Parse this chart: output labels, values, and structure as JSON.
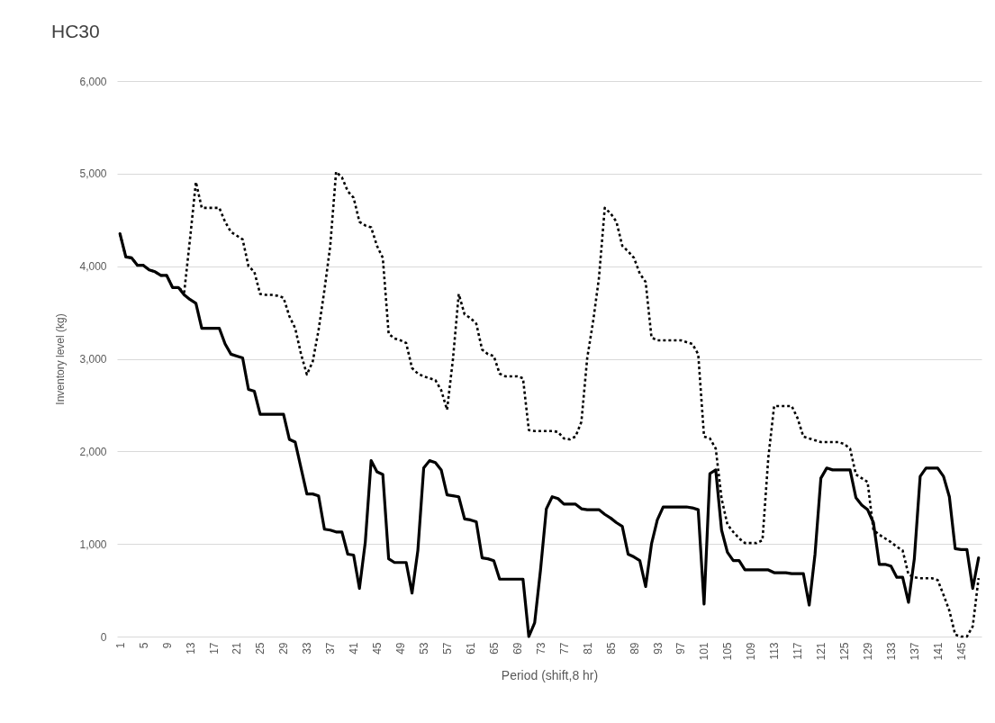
{
  "chart_data": {
    "type": "line",
    "title": "HC30",
    "xlabel": "Period (shift,8 hr)",
    "ylabel": "Inventory level (kg)",
    "x": [
      1,
      2,
      3,
      4,
      5,
      6,
      7,
      8,
      9,
      10,
      11,
      12,
      13,
      14,
      15,
      16,
      17,
      18,
      19,
      20,
      21,
      22,
      23,
      24,
      25,
      26,
      27,
      28,
      29,
      30,
      31,
      32,
      33,
      34,
      35,
      36,
      37,
      38,
      39,
      40,
      41,
      42,
      43,
      44,
      45,
      46,
      47,
      48,
      49,
      50,
      51,
      52,
      53,
      54,
      55,
      56,
      57,
      58,
      59,
      60,
      61,
      62,
      63,
      64,
      65,
      66,
      67,
      68,
      69,
      70,
      71,
      72,
      73,
      74,
      75,
      76,
      77,
      78,
      79,
      80,
      81,
      82,
      83,
      84,
      85,
      86,
      87,
      88,
      89,
      90,
      91,
      92,
      93,
      94,
      95,
      96,
      97,
      98,
      99,
      100,
      101,
      102,
      103,
      104,
      105,
      106,
      107,
      108,
      109,
      110,
      111,
      112,
      113,
      114,
      115,
      116,
      117,
      118,
      119,
      120,
      121,
      122,
      123,
      124,
      125,
      126,
      127,
      128,
      129,
      130,
      131,
      132,
      133,
      134,
      135,
      136,
      137,
      138,
      139,
      140,
      141,
      142,
      143,
      144,
      145,
      146,
      147,
      148
    ],
    "xlim": [
      0.5,
      148.5
    ],
    "xticks": [
      1,
      5,
      9,
      13,
      17,
      21,
      25,
      29,
      33,
      37,
      41,
      45,
      49,
      53,
      57,
      61,
      65,
      69,
      73,
      77,
      81,
      85,
      89,
      93,
      97,
      101,
      105,
      109,
      113,
      117,
      121,
      125,
      129,
      133,
      137,
      141,
      145
    ],
    "ylim": [
      0,
      6000
    ],
    "yticks": [
      0,
      {
        "value": 1000,
        "label": "1,000"
      },
      {
        "value": 2000,
        "label": "2,000"
      },
      {
        "value": 3000,
        "label": "3,000"
      },
      {
        "value": 4000,
        "label": "4,000"
      },
      {
        "value": 5000,
        "label": "5,000"
      },
      {
        "value": 6000,
        "label": "6,000"
      }
    ],
    "grid": "y",
    "series": [
      {
        "color": "#000000",
        "line_style": "dotted",
        "values": [
          4350,
          4100,
          4090,
          4010,
          4010,
          3960,
          3940,
          3900,
          3900,
          3770,
          3770,
          3720,
          4300,
          4910,
          4630,
          4630,
          4630,
          4630,
          4480,
          4370,
          4330,
          4290,
          4000,
          3940,
          3700,
          3690,
          3690,
          3680,
          3660,
          3460,
          3330,
          3050,
          2830,
          2970,
          3310,
          3740,
          4220,
          5020,
          4960,
          4810,
          4740,
          4480,
          4440,
          4420,
          4220,
          4090,
          3270,
          3220,
          3200,
          3170,
          2900,
          2840,
          2810,
          2790,
          2770,
          2660,
          2450,
          2990,
          3700,
          3480,
          3440,
          3380,
          3100,
          3050,
          3030,
          2840,
          2810,
          2810,
          2810,
          2790,
          2230,
          2220,
          2220,
          2220,
          2220,
          2210,
          2140,
          2130,
          2160,
          2320,
          3010,
          3400,
          3870,
          4630,
          4570,
          4480,
          4220,
          4160,
          4090,
          3920,
          3830,
          3230,
          3200,
          3200,
          3200,
          3200,
          3200,
          3180,
          3160,
          3050,
          2160,
          2140,
          2030,
          1490,
          1210,
          1130,
          1060,
          1010,
          1010,
          1010,
          1040,
          1930,
          2490,
          2490,
          2490,
          2490,
          2360,
          2160,
          2140,
          2120,
          2100,
          2100,
          2100,
          2100,
          2080,
          2030,
          1750,
          1710,
          1670,
          1150,
          1100,
          1060,
          1020,
          970,
          930,
          670,
          640,
          630,
          630,
          630,
          610,
          450,
          280,
          20,
          0,
          0,
          110,
          630
        ]
      },
      {
        "color": "#000000",
        "line_style": "solid",
        "values": [
          4350,
          4100,
          4090,
          4010,
          4010,
          3960,
          3940,
          3900,
          3900,
          3770,
          3770,
          3690,
          3640,
          3600,
          3330,
          3330,
          3330,
          3330,
          3160,
          3050,
          3030,
          3010,
          2670,
          2650,
          2400,
          2400,
          2400,
          2400,
          2400,
          2130,
          2100,
          1820,
          1540,
          1540,
          1520,
          1160,
          1150,
          1130,
          1130,
          890,
          880,
          520,
          1020,
          1900,
          1780,
          1750,
          840,
          800,
          800,
          800,
          470,
          930,
          1820,
          1900,
          1880,
          1800,
          1530,
          1520,
          1510,
          1270,
          1260,
          1240,
          850,
          840,
          820,
          620,
          620,
          620,
          620,
          620,
          0,
          150,
          720,
          1380,
          1510,
          1490,
          1430,
          1430,
          1430,
          1380,
          1370,
          1370,
          1370,
          1320,
          1280,
          1230,
          1190,
          890,
          860,
          820,
          540,
          1000,
          1260,
          1400,
          1400,
          1400,
          1400,
          1400,
          1390,
          1370,
          350,
          1760,
          1800,
          1150,
          910,
          820,
          820,
          720,
          720,
          720,
          720,
          720,
          690,
          690,
          690,
          680,
          680,
          680,
          340,
          890,
          1710,
          1820,
          1800,
          1800,
          1800,
          1800,
          1500,
          1420,
          1370,
          1230,
          780,
          780,
          760,
          640,
          640,
          370,
          840,
          1730,
          1820,
          1820,
          1820,
          1730,
          1510,
          950,
          940,
          940,
          520,
          850
        ]
      }
    ]
  }
}
